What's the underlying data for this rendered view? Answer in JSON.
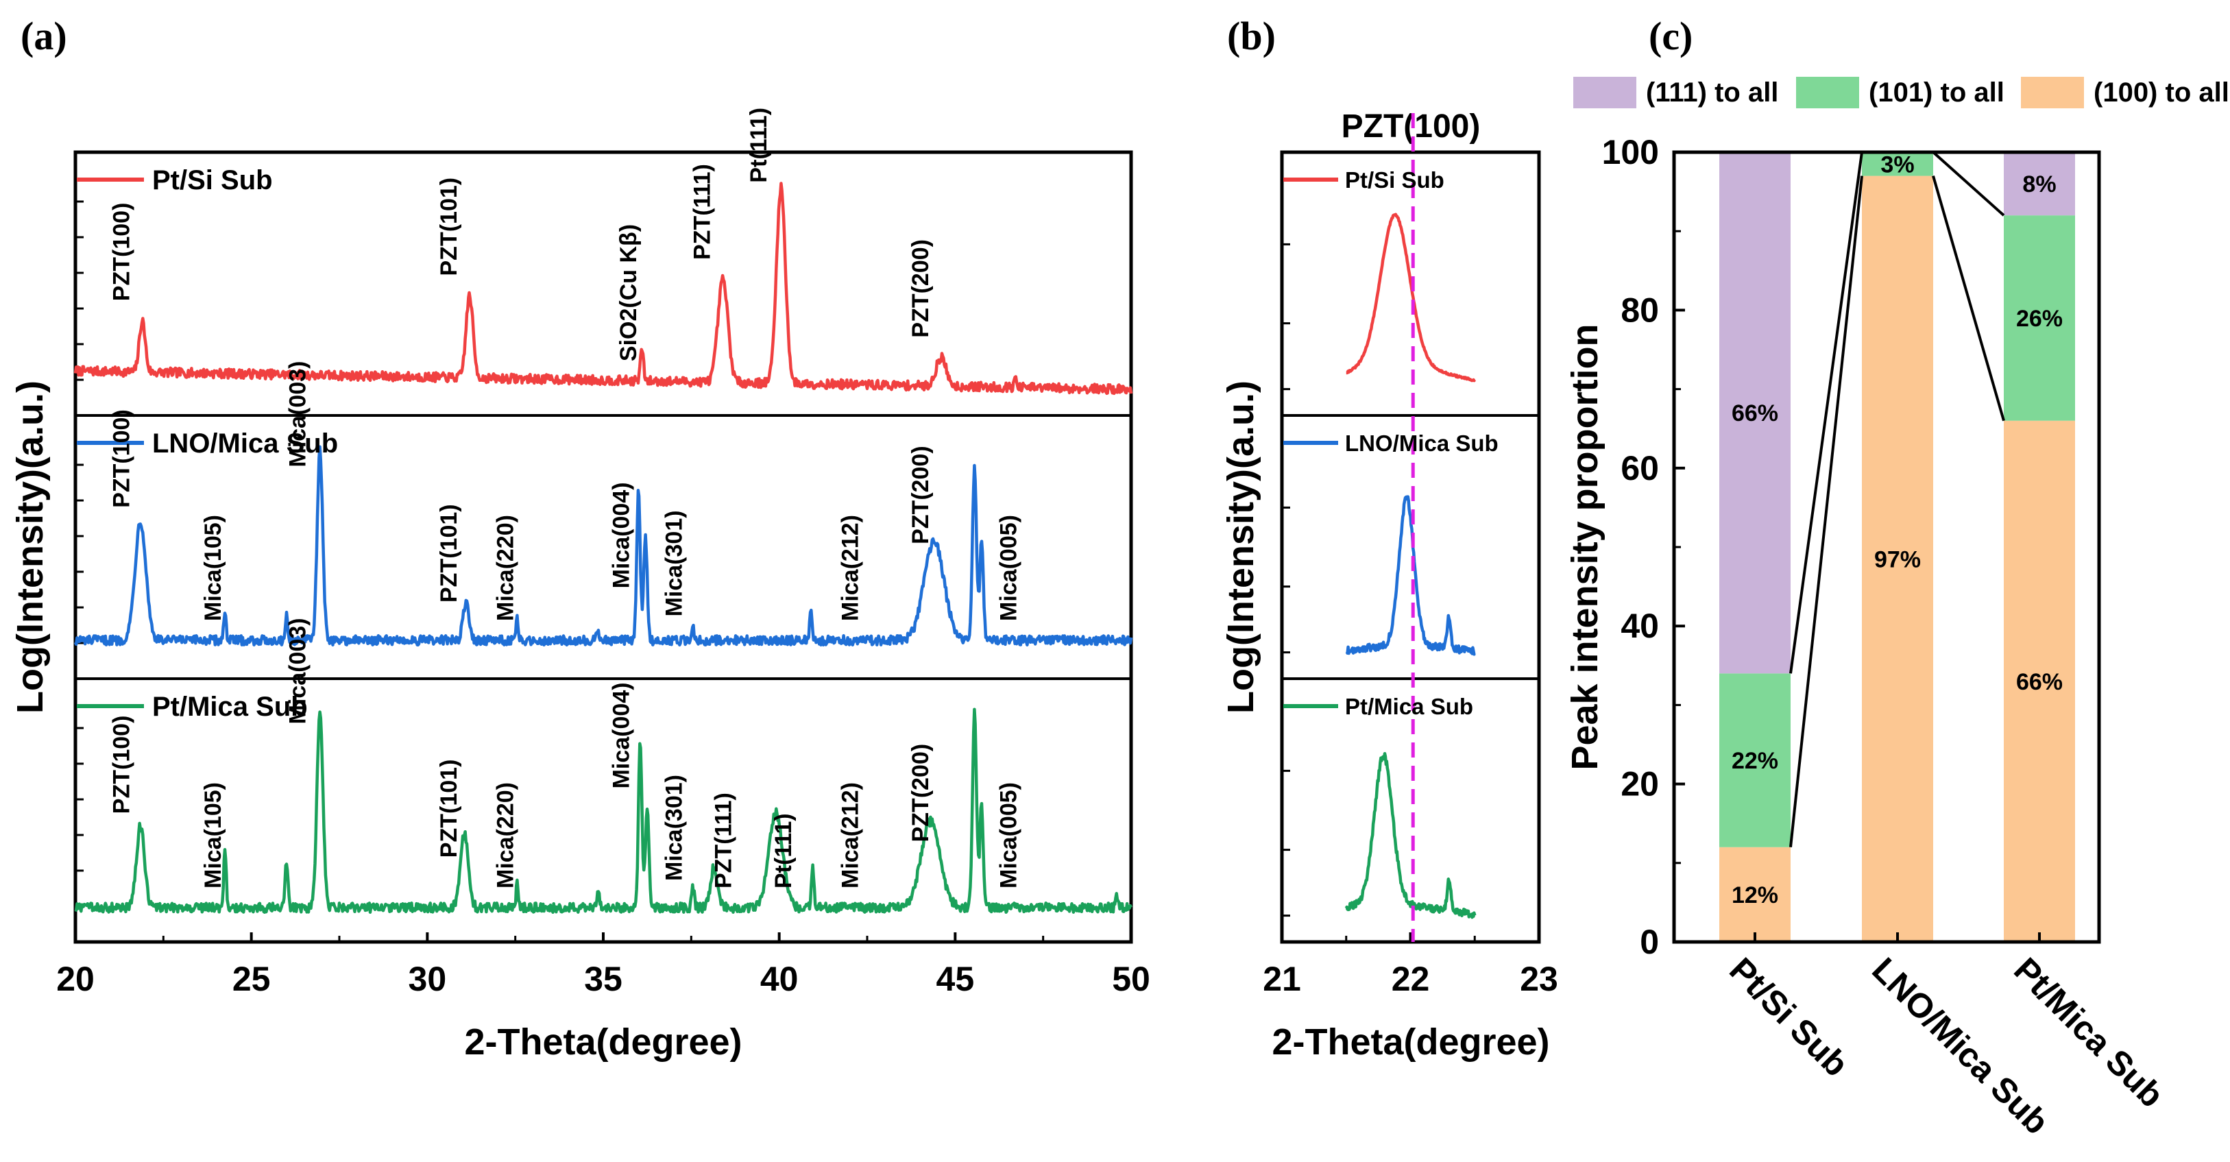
{
  "chart_data": [
    {
      "panel": "(a)",
      "type": "line",
      "xlabel": "2-Theta(degree)",
      "ylabel": "Log(Intensity)(a.u.)",
      "xlim": [
        20,
        50
      ],
      "xticks": [
        "20",
        "25",
        "30",
        "35",
        "40",
        "45",
        "50"
      ],
      "series": [
        {
          "name": "Pt/Si Sub",
          "color": "#f04040",
          "baseline": 0.15,
          "slope": 0.003,
          "peaks": [
            [
              21.9,
              0.25,
              0.12
            ],
            [
              31.2,
              0.4,
              0.14
            ],
            [
              36.1,
              0.16,
              0.06
            ],
            [
              38.4,
              0.5,
              0.2
            ],
            [
              40.05,
              0.95,
              0.18
            ],
            [
              44.6,
              0.14,
              0.2
            ],
            [
              46.7,
              0.04,
              0.05
            ]
          ],
          "annotations": [
            {
              "label": "PZT(100)",
              "x": 21.3
            },
            {
              "label": "PZT(101)",
              "x": 30.6
            },
            {
              "label": "SiO2(Cu Kβ)",
              "x": 35.7
            },
            {
              "label": "PZT(111)",
              "x": 37.8
            },
            {
              "label": "Pt(111)",
              "x": 39.4
            },
            {
              "label": "PZT(200)",
              "x": 44.0
            }
          ]
        },
        {
          "name": "LNO/Mica Sub",
          "color": "#1f6fd6",
          "baseline": 0.12,
          "slope": 0.0,
          "peaks": [
            [
              21.85,
              0.58,
              0.22
            ],
            [
              24.25,
              0.14,
              0.05
            ],
            [
              26.0,
              0.12,
              0.05
            ],
            [
              26.95,
              0.92,
              0.11
            ],
            [
              31.1,
              0.18,
              0.12
            ],
            [
              32.55,
              0.1,
              0.04
            ],
            [
              34.85,
              0.05,
              0.05
            ],
            [
              36.0,
              0.72,
              0.07
            ],
            [
              36.2,
              0.5,
              0.07
            ],
            [
              37.55,
              0.06,
              0.05
            ],
            [
              40.9,
              0.15,
              0.05
            ],
            [
              44.4,
              0.48,
              0.4
            ],
            [
              45.55,
              0.84,
              0.08
            ],
            [
              45.75,
              0.5,
              0.07
            ]
          ],
          "annotations": [
            {
              "label": "PZT(100)",
              "x": 21.3
            },
            {
              "label": "Mica(105)",
              "x": 23.9
            },
            {
              "label": "Mica(003)",
              "x": 26.3
            },
            {
              "label": "PZT(101)",
              "x": 30.6
            },
            {
              "label": "Mica(220)",
              "x": 32.2
            },
            {
              "label": "Mica(004)",
              "x": 35.5
            },
            {
              "label": "Mica(301)",
              "x": 37.0
            },
            {
              "label": "Mica(212)",
              "x": 42.0
            },
            {
              "label": "PZT(200)",
              "x": 44.0
            },
            {
              "label": "Mica(005)",
              "x": 46.5
            }
          ]
        },
        {
          "name": "Pt/Mica Sub",
          "color": "#1aa15a",
          "baseline": 0.1,
          "slope": 0.0,
          "peaks": [
            [
              21.85,
              0.4,
              0.16
            ],
            [
              24.25,
              0.3,
              0.05
            ],
            [
              26.0,
              0.22,
              0.06
            ],
            [
              26.95,
              0.95,
              0.12
            ],
            [
              31.05,
              0.36,
              0.16
            ],
            [
              32.55,
              0.12,
              0.04
            ],
            [
              34.85,
              0.08,
              0.05
            ],
            [
              36.05,
              0.8,
              0.07
            ],
            [
              36.25,
              0.5,
              0.07
            ],
            [
              37.55,
              0.1,
              0.05
            ],
            [
              38.15,
              0.2,
              0.14
            ],
            [
              39.9,
              0.46,
              0.28
            ],
            [
              40.95,
              0.2,
              0.05
            ],
            [
              44.3,
              0.42,
              0.38
            ],
            [
              45.55,
              0.95,
              0.08
            ],
            [
              45.75,
              0.5,
              0.07
            ],
            [
              49.6,
              0.06,
              0.05
            ]
          ],
          "annotations": [
            {
              "label": "PZT(100)",
              "x": 21.3
            },
            {
              "label": "Mica(105)",
              "x": 23.9
            },
            {
              "label": "Mica(003)",
              "x": 26.3
            },
            {
              "label": "PZT(101)",
              "x": 30.6
            },
            {
              "label": "Mica(220)",
              "x": 32.2
            },
            {
              "label": "Mica(004)",
              "x": 35.5
            },
            {
              "label": "Mica(301)",
              "x": 37.0
            },
            {
              "label": "PZT(111)",
              "x": 38.4
            },
            {
              "label": "Pt(111)",
              "x": 40.1
            },
            {
              "label": "Mica(212)",
              "x": 42.0
            },
            {
              "label": "PZT(200)",
              "x": 44.0
            },
            {
              "label": "Mica(005)",
              "x": 46.5
            }
          ]
        }
      ]
    },
    {
      "panel": "(b)",
      "type": "line",
      "title": "PZT(100)",
      "xlabel": "2-Theta(degree)",
      "ylabel": "Log(Intensity)(a.u.)",
      "xlim": [
        21,
        23
      ],
      "xticks": [
        "21",
        "22",
        "23"
      ],
      "reference_line": 22.02,
      "reference_color": "#e020e0",
      "series": [
        {
          "name": "Pt/Si Sub",
          "color": "#f04040",
          "x_range": [
            21.5,
            22.5
          ],
          "peak_x": 21.88,
          "peak_width": 0.16,
          "base": 0.18,
          "end_level": 0.05
        },
        {
          "name": "LNO/Mica Sub",
          "color": "#1f6fd6",
          "x_range": [
            21.5,
            22.5
          ],
          "peak_x": 21.97,
          "peak_width": 0.08,
          "base": 0.08,
          "end_level": 0.04
        },
        {
          "name": "Pt/Mica Sub",
          "color": "#1aa15a",
          "x_range": [
            21.5,
            22.5
          ],
          "peak_x": 21.79,
          "peak_width": 0.1,
          "base": 0.1,
          "end_level": 0.05
        }
      ]
    },
    {
      "panel": "(c)",
      "type": "bar",
      "stacked": true,
      "ylabel": "Peak intensity proportion",
      "ylim": [
        0,
        100
      ],
      "yticks": [
        "0",
        "20",
        "40",
        "60",
        "80",
        "100"
      ],
      "categories": [
        "Pt/Si Sub",
        "LNO/Mica Sub",
        "Pt/Mica Sub"
      ],
      "series": [
        {
          "name": "(100) to all",
          "color": "#fcc792",
          "values": [
            12,
            97,
            66
          ],
          "labels": [
            "12%",
            "97%",
            "66%"
          ]
        },
        {
          "name": "(101) to all",
          "color": "#7fd897",
          "values": [
            22,
            3,
            26
          ],
          "labels": [
            "22%",
            "3%",
            "26%"
          ]
        },
        {
          "name": "(111) to all",
          "color": "#c9b3d9",
          "values": [
            66,
            0,
            8
          ],
          "labels": [
            "66%",
            "",
            "8%"
          ]
        }
      ],
      "legend_order": [
        "(111) to all",
        "(101) to all",
        "(100) to all"
      ]
    }
  ]
}
